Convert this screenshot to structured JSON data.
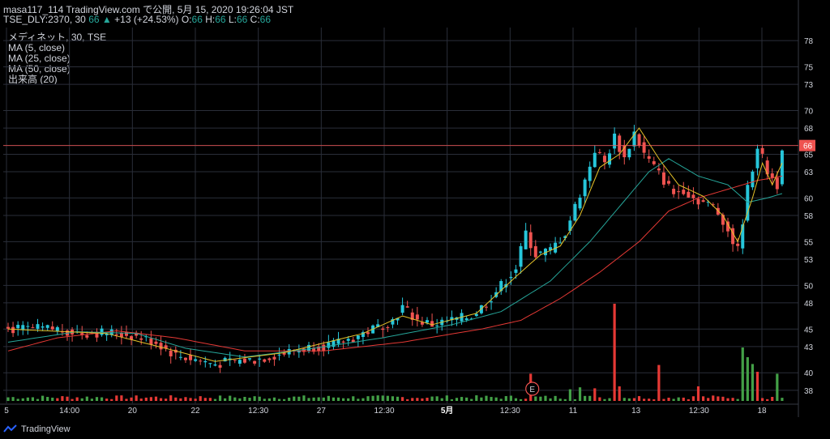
{
  "header": {
    "line1": "masa117_114 TradingView.com で公開, 5月 15, 2020 19:26:04 JST",
    "symbol": "TSE_DLY:2370, 30",
    "last": "66",
    "arrow": "▲",
    "change": "+13 (+24.53%)",
    "o_label": "O:",
    "o": "66",
    "h_label": "H:",
    "h": "66",
    "l_label": "L:",
    "l": "66",
    "c_label": "C:",
    "c": "66"
  },
  "legend": {
    "title": "メディネット, 30, TSE",
    "ma5": "MA (5, close)",
    "ma25": "MA (25, close)",
    "ma50": "MA (50, close)",
    "volume": "出来高 (20)"
  },
  "footer": {
    "brand": "TradingView"
  },
  "colors": {
    "up": "#26c6da",
    "down": "#ef5350",
    "ma5": "#e6c229",
    "ma25": "#26a69a",
    "ma50": "#e53935",
    "vol_up": "#43a047",
    "vol_down": "#e53935",
    "price_line": "#ef5350",
    "grid": "#2a2e39"
  },
  "chart_data": {
    "type": "candlestick",
    "y_ticks": [
      38,
      40,
      43,
      45,
      48,
      50,
      53,
      55,
      58,
      60,
      63,
      65,
      66,
      68,
      70,
      73,
      75,
      78
    ],
    "ylim": [
      36.5,
      79.5
    ],
    "x_ticks": [
      "5",
      "14:00",
      "20",
      "22",
      "12:30",
      "27",
      "12:30",
      "5月",
      "12:30",
      "11",
      "13",
      "12:30",
      "18"
    ],
    "last_price": 66,
    "earnings_marker": "E",
    "close_anchors": [
      [
        0,
        45.0
      ],
      [
        10,
        45.0
      ],
      [
        15,
        44.5
      ],
      [
        20,
        44.6
      ],
      [
        25,
        44.3
      ],
      [
        30,
        43.5
      ],
      [
        34,
        42.0
      ],
      [
        38,
        41.5
      ],
      [
        42,
        41.0
      ],
      [
        46,
        41.3
      ],
      [
        50,
        41.5
      ],
      [
        54,
        42.0
      ],
      [
        58,
        42.5
      ],
      [
        62,
        43.0
      ],
      [
        66,
        43.2
      ],
      [
        70,
        44.0
      ],
      [
        74,
        45.0
      ],
      [
        78,
        46.0
      ],
      [
        80,
        47.5
      ],
      [
        83,
        46.0
      ],
      [
        86,
        45.5
      ],
      [
        90,
        46.0
      ],
      [
        94,
        46.5
      ],
      [
        97,
        48.0
      ],
      [
        100,
        50.0
      ],
      [
        103,
        52.0
      ],
      [
        105,
        56.0
      ],
      [
        107,
        53.5
      ],
      [
        110,
        54.0
      ],
      [
        113,
        56.0
      ],
      [
        115,
        59.0
      ],
      [
        117,
        62.0
      ],
      [
        119,
        65.5
      ],
      [
        121,
        64.0
      ],
      [
        123,
        67.0
      ],
      [
        125,
        64.5
      ],
      [
        127,
        67.5
      ],
      [
        129,
        65.0
      ],
      [
        131,
        63.5
      ],
      [
        133,
        62.0
      ],
      [
        135,
        60.5
      ],
      [
        137,
        61.0
      ],
      [
        139,
        60.0
      ],
      [
        141,
        59.5
      ],
      [
        143,
        59.0
      ],
      [
        145,
        57.5
      ],
      [
        147,
        55.0
      ],
      [
        148,
        54.0
      ],
      [
        150,
        61.0
      ],
      [
        152,
        66.0
      ],
      [
        154,
        63.0
      ],
      [
        156,
        61.5
      ],
      [
        157,
        66.0
      ]
    ],
    "ma5_anchors": [
      [
        0,
        45.0
      ],
      [
        20,
        44.5
      ],
      [
        34,
        42.5
      ],
      [
        42,
        41.3
      ],
      [
        56,
        42.3
      ],
      [
        72,
        44.5
      ],
      [
        80,
        46.5
      ],
      [
        86,
        45.5
      ],
      [
        95,
        46.8
      ],
      [
        103,
        51.0
      ],
      [
        108,
        53.5
      ],
      [
        112,
        54.5
      ],
      [
        116,
        58.0
      ],
      [
        120,
        63.5
      ],
      [
        124,
        65.0
      ],
      [
        128,
        68.0
      ],
      [
        132,
        64.5
      ],
      [
        136,
        61.5
      ],
      [
        141,
        60.2
      ],
      [
        145,
        58.0
      ],
      [
        148,
        55.0
      ],
      [
        151,
        60.0
      ],
      [
        153,
        64.0
      ],
      [
        155,
        61.5
      ],
      [
        157,
        64.0
      ]
    ],
    "ma25_anchors": [
      [
        0,
        43.5
      ],
      [
        14,
        44.7
      ],
      [
        26,
        44.5
      ],
      [
        36,
        42.8
      ],
      [
        48,
        41.8
      ],
      [
        62,
        42.8
      ],
      [
        76,
        44.0
      ],
      [
        90,
        45.5
      ],
      [
        100,
        47.0
      ],
      [
        110,
        50.5
      ],
      [
        118,
        55.0
      ],
      [
        124,
        59.0
      ],
      [
        130,
        63.0
      ],
      [
        134,
        64.5
      ],
      [
        140,
        62.5
      ],
      [
        146,
        61.5
      ],
      [
        150,
        59.5
      ],
      [
        154,
        60.0
      ],
      [
        157,
        60.5
      ]
    ],
    "ma50_anchors": [
      [
        0,
        42.5
      ],
      [
        10,
        44.0
      ],
      [
        22,
        44.8
      ],
      [
        34,
        44.0
      ],
      [
        48,
        42.5
      ],
      [
        64,
        42.5
      ],
      [
        80,
        43.5
      ],
      [
        96,
        45.0
      ],
      [
        104,
        46.0
      ],
      [
        112,
        48.5
      ],
      [
        120,
        51.5
      ],
      [
        128,
        55.0
      ],
      [
        134,
        58.5
      ],
      [
        140,
        60.0
      ],
      [
        146,
        61.0
      ],
      [
        152,
        62.0
      ],
      [
        157,
        62.5
      ]
    ],
    "volume_spikes": [
      [
        106,
        0.28
      ],
      [
        114,
        0.12
      ],
      [
        116,
        0.14
      ],
      [
        119,
        0.13
      ],
      [
        123,
        1.0
      ],
      [
        124,
        0.15
      ],
      [
        132,
        0.37
      ],
      [
        140,
        0.15
      ],
      [
        149,
        0.55
      ],
      [
        150,
        0.45
      ],
      [
        151,
        0.38
      ],
      [
        152,
        0.3
      ],
      [
        156,
        0.28
      ]
    ]
  }
}
